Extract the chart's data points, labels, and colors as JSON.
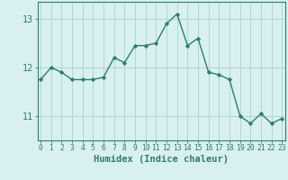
{
  "xlabel": "Humidex (Indice chaleur)",
  "x": [
    0,
    1,
    2,
    3,
    4,
    5,
    6,
    7,
    8,
    9,
    10,
    11,
    12,
    13,
    14,
    15,
    16,
    17,
    18,
    19,
    20,
    21,
    22,
    23
  ],
  "y": [
    11.75,
    12.0,
    11.9,
    11.75,
    11.75,
    11.75,
    11.8,
    12.2,
    12.1,
    12.45,
    12.45,
    12.5,
    12.9,
    13.1,
    12.45,
    12.6,
    11.9,
    11.85,
    11.75,
    11.0,
    10.85,
    11.05,
    10.85,
    10.95
  ],
  "line_color": "#2e7d6e",
  "marker": "D",
  "marker_size": 2.2,
  "bg_color": "#d8f0f0",
  "grid_color": "#a8d4d4",
  "axis_color": "#2e7d6e",
  "spine_color": "#2e7d6e",
  "ylim": [
    10.5,
    13.35
  ],
  "yticks": [
    11,
    12,
    13
  ],
  "xticks": [
    0,
    1,
    2,
    3,
    4,
    5,
    6,
    7,
    8,
    9,
    10,
    11,
    12,
    13,
    14,
    15,
    16,
    17,
    18,
    19,
    20,
    21,
    22,
    23
  ],
  "tick_label_fontsize": 5.8,
  "xlabel_fontsize": 7.5,
  "linewidth": 1.0
}
